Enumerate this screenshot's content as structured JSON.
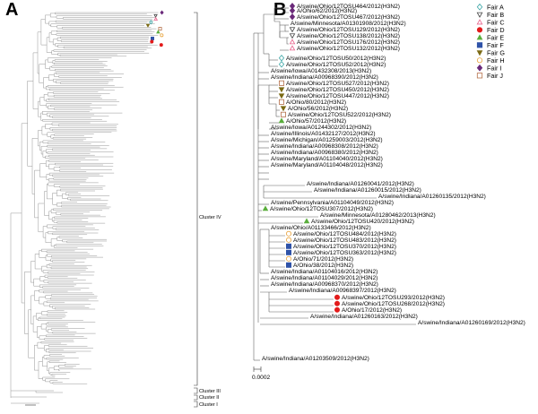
{
  "panels": {
    "a": "A",
    "b": "B"
  },
  "panel_a": {
    "clusters": [
      {
        "label": "Cluster IV"
      },
      {
        "label": "Cluster III"
      },
      {
        "label": "Cluster II"
      },
      {
        "label": "Cluster I"
      }
    ]
  },
  "panel_b": {
    "scale": "0.0002",
    "legend": [
      {
        "label": "Fair A",
        "shape": "diamond-open",
        "color": "#3aa6a6"
      },
      {
        "label": "Fair B",
        "shape": "triangle-down-open",
        "color": "#444444"
      },
      {
        "label": "Fair C",
        "shape": "triangle-up-open",
        "color": "#e8608a"
      },
      {
        "label": "Fair D",
        "shape": "circle",
        "color": "#e31b1b"
      },
      {
        "label": "Fair E",
        "shape": "triangle-up",
        "color": "#5aae3c"
      },
      {
        "label": "Fair F",
        "shape": "square",
        "color": "#2f53a8"
      },
      {
        "label": "Fair G",
        "shape": "triangle-down",
        "color": "#7b6a14"
      },
      {
        "label": "Fair H",
        "shape": "circle-open",
        "color": "#e8a23a"
      },
      {
        "label": "Fair I",
        "shape": "diamond",
        "color": "#6b2a7a"
      },
      {
        "label": "Fair J",
        "shape": "square-open",
        "color": "#b5704a"
      }
    ],
    "taxa": [
      {
        "label": "A/swine/Ohio/12TOSU464/2012(H3N2)",
        "fair": "Fair I"
      },
      {
        "label": "A/Ohio/62/2012(H3N2)",
        "fair": "Fair I"
      },
      {
        "label": "A/swine/Ohio/12TOSU467/2012(H3N2)",
        "fair": "Fair I"
      },
      {
        "label": "A/swine/Minnesota/A01301908/2012(H3N2)",
        "fair": ""
      },
      {
        "label": "A/swine/Ohio/12TOSU129/2012(H3N2)",
        "fair": "Fair B"
      },
      {
        "label": "A/swine/Ohio/12TOSU138/2012(H3N2)",
        "fair": "Fair B"
      },
      {
        "label": "A/swine/Ohio/12TOSU176/2012(H3N2)",
        "fair": "Fair C"
      },
      {
        "label": "A/swine/Ohio/12TOSU132/2012(H3N2)",
        "fair": "Fair C"
      },
      {
        "label": "A/swine/Ohio/12TOSU50/2012(H3N2)",
        "fair": "Fair A"
      },
      {
        "label": "A/swine/Ohio/12TOSU52/2012(H3N2)",
        "fair": "Fair A"
      },
      {
        "label": "A/swine/Iowa/A01432308/2013(H3N2)",
        "fair": ""
      },
      {
        "label": "A/swine/Indiana/A00968390/2012(H3N2)",
        "fair": ""
      },
      {
        "label": "A/swine/Ohio/12TOSU527/2012(H3N2)",
        "fair": "Fair J"
      },
      {
        "label": "A/swine/Ohio/12TOSU450/2012(H3N2)",
        "fair": "Fair G"
      },
      {
        "label": "A/swine/Ohio/12TOSU447/2012(H3N2)",
        "fair": "Fair G"
      },
      {
        "label": "A/Ohio/80/2012(H3N2)",
        "fair": "Fair J"
      },
      {
        "label": "A/Ohio/56/2012(H3N2)",
        "fair": "Fair G"
      },
      {
        "label": "A/swine/Ohio/12TOSU522/2012(H3N2)",
        "fair": "Fair J"
      },
      {
        "label": "A/Ohio/57/2012(H3N2)",
        "fair": "Fair E"
      },
      {
        "label": "A/swine/Iowa/A01244302/2012(H3N2)",
        "fair": ""
      },
      {
        "label": "A/swine/Illinois/A01432127/2012(H3N2)",
        "fair": ""
      },
      {
        "label": "A/swine/Michigan/A01259003/2012(H3N2)",
        "fair": ""
      },
      {
        "label": "A/swine/Indiana/A00968308/2012(H3N2)",
        "fair": ""
      },
      {
        "label": "A/swine/Indiana/A00968380/2012(H3N2)",
        "fair": ""
      },
      {
        "label": "A/swine/Maryland/A01104040/2012(H3N2)",
        "fair": ""
      },
      {
        "label": "A/swine/Maryland/A01104048/2012(H3N2)",
        "fair": ""
      },
      {
        "label": "A/swine/Indiana/A01260041/2012(H3N2)",
        "fair": ""
      },
      {
        "label": "A/swine/Indiana/A01260015/2012(H3N2)",
        "fair": ""
      },
      {
        "label": "A/swine/Indiana/A01260135/2012(H3N2)",
        "fair": ""
      },
      {
        "label": "A/swine/Pennsylvania/A01104049/2012(H3N2)",
        "fair": ""
      },
      {
        "label": "A/swine/Ohio/12TOSU307/2012(H3N2)",
        "fair": "Fair E"
      },
      {
        "label": "A/swine/Minnesota/A01280462/2013(H3N2)",
        "fair": ""
      },
      {
        "label": "A/swine/Ohio/12TOSU420/2012(H3N2)",
        "fair": "Fair E"
      },
      {
        "label": "A/swine/Ohio/A01133466/2012(H3N2)",
        "fair": ""
      },
      {
        "label": "A/swine/Ohio/12TOSU484/2012(H3N2)",
        "fair": "Fair H"
      },
      {
        "label": "A/swine/Ohio/12TOSU483/2012(H3N2)",
        "fair": "Fair H"
      },
      {
        "label": "A/swine/Ohio/12TOSU370/2012(H3N2)",
        "fair": "Fair F"
      },
      {
        "label": "A/swine/Ohio/12TOSU363/2012(H3N2)",
        "fair": "Fair F"
      },
      {
        "label": "A/Ohio/71/2012(H3N2)",
        "fair": "Fair H"
      },
      {
        "label": "A/Ohio/38/2012(H3N2)",
        "fair": "Fair F"
      },
      {
        "label": "A/swine/Indiana/A01104016/2012(H3N2)",
        "fair": ""
      },
      {
        "label": "A/swine/Indiana/A01104029/2012(H3N2)",
        "fair": ""
      },
      {
        "label": "A/swine/Indiana/A00968370/2012(H3N2)",
        "fair": ""
      },
      {
        "label": "A/swine/Indiana/A00968397/2012(H3N2)",
        "fair": ""
      },
      {
        "label": "A/swine/Ohio/12TOSU293/2012(H3N2)",
        "fair": "Fair D"
      },
      {
        "label": "A/swine/Ohio/12TOSU268/2012(H3N2)",
        "fair": "Fair D"
      },
      {
        "label": "A/Ohio/17/2012(H3N2)",
        "fair": "Fair D"
      },
      {
        "label": "A/swine/Indiana/A01260163/2012(H3N2)",
        "fair": ""
      },
      {
        "label": "A/swine/Indiana/A01260169/2012(H3N2)",
        "fair": ""
      },
      {
        "label": "A/swine/Indiana/A01203509/2012(H3N2)",
        "fair": ""
      }
    ]
  }
}
